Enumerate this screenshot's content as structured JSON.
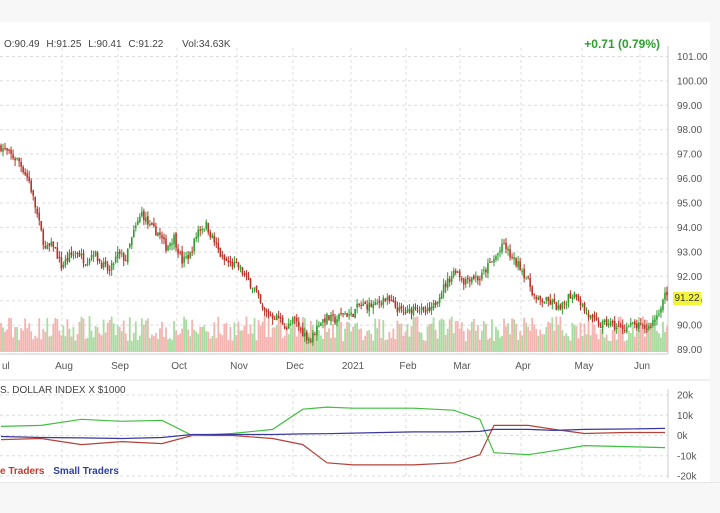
{
  "header": {
    "open": "O:90.49",
    "high": "H:91.25",
    "low": "L:90.41",
    "close": "C:91.22",
    "volume": "Vol:34.63K",
    "change": "+0.71 (0.79%)",
    "last_price": "91.22"
  },
  "cot_panel": {
    "title": "S. DOLLAR INDEX X $1000",
    "legend_commercials": "e Traders",
    "legend_small": "Small Traders"
  },
  "colors": {
    "up": "#2e9e2e",
    "down": "#b83226",
    "volume_up": "#a8dca0",
    "volume_down": "#f4b4b0",
    "commercials": "#b5423a",
    "large": "#3fbf3f",
    "small": "#3a3a9e",
    "grid": "#dcdcdc",
    "price_tag": "#f4f53a"
  },
  "chart_data": [
    {
      "type": "candlestick",
      "title": "",
      "y_ticks": [
        "89.00",
        "90.00",
        "91.00",
        "92.00",
        "93.00",
        "94.00",
        "95.00",
        "96.00",
        "97.00",
        "98.00",
        "99.00",
        "100.00",
        "101.00"
      ],
      "x_ticks": [
        "ul",
        "Aug",
        "Sep",
        "Oct",
        "Nov",
        "Dec",
        "2021",
        "Feb",
        "Mar",
        "Apr",
        "May",
        "Jun"
      ],
      "ylim": [
        88.9,
        101.1
      ],
      "grid": true,
      "close_path": [
        [
          0,
          97.3
        ],
        [
          4,
          97.0
        ],
        [
          9,
          96.7
        ],
        [
          14,
          95.9
        ],
        [
          18,
          94.5
        ],
        [
          22,
          93.1
        ],
        [
          26,
          93.3
        ],
        [
          30,
          92.4
        ],
        [
          34,
          92.8
        ],
        [
          38,
          93.0
        ],
        [
          42,
          92.6
        ],
        [
          46,
          93.0
        ],
        [
          50,
          92.5
        ],
        [
          54,
          92.2
        ],
        [
          58,
          92.9
        ],
        [
          62,
          92.7
        ],
        [
          66,
          93.8
        ],
        [
          70,
          94.6
        ],
        [
          74,
          94.0
        ],
        [
          78,
          93.8
        ],
        [
          82,
          93.2
        ],
        [
          86,
          93.6
        ],
        [
          90,
          92.6
        ],
        [
          94,
          92.9
        ],
        [
          98,
          93.9
        ],
        [
          102,
          94.1
        ],
        [
          106,
          93.4
        ],
        [
          110,
          92.7
        ],
        [
          114,
          92.5
        ],
        [
          118,
          92.4
        ],
        [
          122,
          91.9
        ],
        [
          126,
          91.5
        ],
        [
          130,
          90.6
        ],
        [
          134,
          90.4
        ],
        [
          138,
          90.3
        ],
        [
          142,
          89.9
        ],
        [
          146,
          90.2
        ],
        [
          150,
          89.7
        ],
        [
          154,
          89.4
        ],
        [
          158,
          90.1
        ],
        [
          162,
          90.3
        ],
        [
          166,
          90.2
        ],
        [
          170,
          90.5
        ],
        [
          174,
          90.4
        ],
        [
          178,
          90.8
        ],
        [
          182,
          90.8
        ],
        [
          186,
          90.8
        ],
        [
          190,
          91.1
        ],
        [
          194,
          90.9
        ],
        [
          198,
          90.6
        ],
        [
          202,
          90.5
        ],
        [
          206,
          90.8
        ],
        [
          210,
          90.5
        ],
        [
          214,
          90.6
        ],
        [
          218,
          91.3
        ],
        [
          222,
          91.8
        ],
        [
          226,
          92.3
        ],
        [
          230,
          91.8
        ],
        [
          234,
          92.0
        ],
        [
          238,
          91.9
        ],
        [
          242,
          92.4
        ],
        [
          246,
          92.8
        ],
        [
          250,
          93.3
        ],
        [
          254,
          92.7
        ],
        [
          258,
          92.4
        ],
        [
          262,
          91.8
        ],
        [
          266,
          91.0
        ],
        [
          270,
          91.0
        ],
        [
          274,
          90.9
        ],
        [
          278,
          90.6
        ],
        [
          282,
          91.2
        ],
        [
          286,
          91.3
        ],
        [
          290,
          90.6
        ],
        [
          294,
          90.2
        ],
        [
          298,
          90.0
        ],
        [
          302,
          90.1
        ],
        [
          306,
          89.9
        ],
        [
          310,
          89.9
        ],
        [
          314,
          90.0
        ],
        [
          318,
          89.9
        ],
        [
          322,
          89.9
        ],
        [
          326,
          90.4
        ],
        [
          330,
          91.22
        ]
      ],
      "volume_max": 40000,
      "last_price": 91.22
    },
    {
      "type": "line",
      "title": "",
      "y_ticks": [
        "20k",
        "10k",
        "0k",
        "-10k",
        "-20k"
      ],
      "ylim": [
        -20000,
        20000
      ],
      "series": [
        {
          "name": "e Traders",
          "color": "#b5423a",
          "values": [
            [
              0,
              -2000
            ],
            [
              20,
              -1500
            ],
            [
              40,
              -4500
            ],
            [
              60,
              -3000
            ],
            [
              80,
              -4000
            ],
            [
              95,
              0
            ],
            [
              115,
              0
            ],
            [
              135,
              -1500
            ],
            [
              150,
              -4500
            ],
            [
              162,
              -13500
            ],
            [
              175,
              -14500
            ],
            [
              190,
              -14500
            ],
            [
              205,
              -14500
            ],
            [
              225,
              -13500
            ],
            [
              238,
              -9500
            ],
            [
              245,
              5000
            ],
            [
              262,
              5000
            ],
            [
              275,
              3000
            ],
            [
              290,
              1000
            ],
            [
              310,
              1500
            ],
            [
              330,
              1500
            ]
          ]
        },
        {
          "name": "",
          "color": "#3fbf3f",
          "values": [
            [
              0,
              4500
            ],
            [
              20,
              5000
            ],
            [
              40,
              8000
            ],
            [
              60,
              7000
            ],
            [
              80,
              7500
            ],
            [
              95,
              0
            ],
            [
              115,
              1000
            ],
            [
              135,
              3000
            ],
            [
              150,
              13000
            ],
            [
              162,
              14000
            ],
            [
              175,
              13500
            ],
            [
              190,
              13500
            ],
            [
              205,
              13500
            ],
            [
              225,
              12500
            ],
            [
              238,
              8000
            ],
            [
              245,
              -8500
            ],
            [
              262,
              -9500
            ],
            [
              275,
              -7500
            ],
            [
              290,
              -5000
            ],
            [
              310,
              -5500
            ],
            [
              330,
              -6000
            ]
          ]
        },
        {
          "name": "Small Traders",
          "color": "#3a3a9e",
          "values": [
            [
              0,
              -500
            ],
            [
              20,
              -1000
            ],
            [
              40,
              -1200
            ],
            [
              60,
              -1500
            ],
            [
              80,
              -1000
            ],
            [
              95,
              500
            ],
            [
              115,
              500
            ],
            [
              135,
              500
            ],
            [
              150,
              800
            ],
            [
              162,
              900
            ],
            [
              175,
              1200
            ],
            [
              190,
              1500
            ],
            [
              205,
              1800
            ],
            [
              225,
              1800
            ],
            [
              238,
              2000
            ],
            [
              245,
              3000
            ],
            [
              262,
              3000
            ],
            [
              275,
              2500
            ],
            [
              290,
              3000
            ],
            [
              310,
              3200
            ],
            [
              330,
              3500
            ]
          ]
        }
      ]
    }
  ]
}
